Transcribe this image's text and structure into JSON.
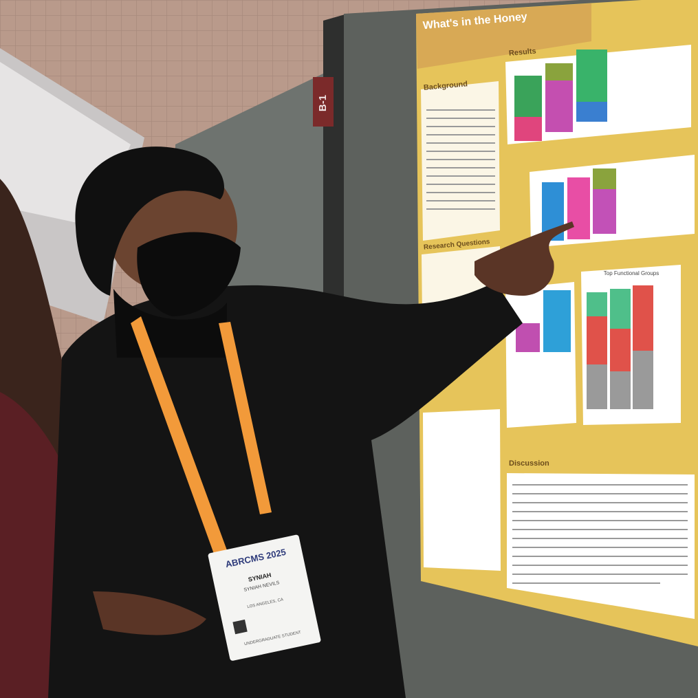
{
  "sign": {
    "label": "B-1"
  },
  "poster": {
    "title": "What's in the Honey",
    "sections": [
      "Results",
      "Background",
      "Research Questions",
      "Discussion"
    ],
    "figure_title": "Top Functional Groups"
  },
  "badge": {
    "event": "ABRCMS 2025",
    "first_name": "SYNIAH",
    "full_name": "SYNIAH NEVILS",
    "location": "LOS ANGELES, CA",
    "role": "UNDERGRADUATE STUDENT"
  }
}
